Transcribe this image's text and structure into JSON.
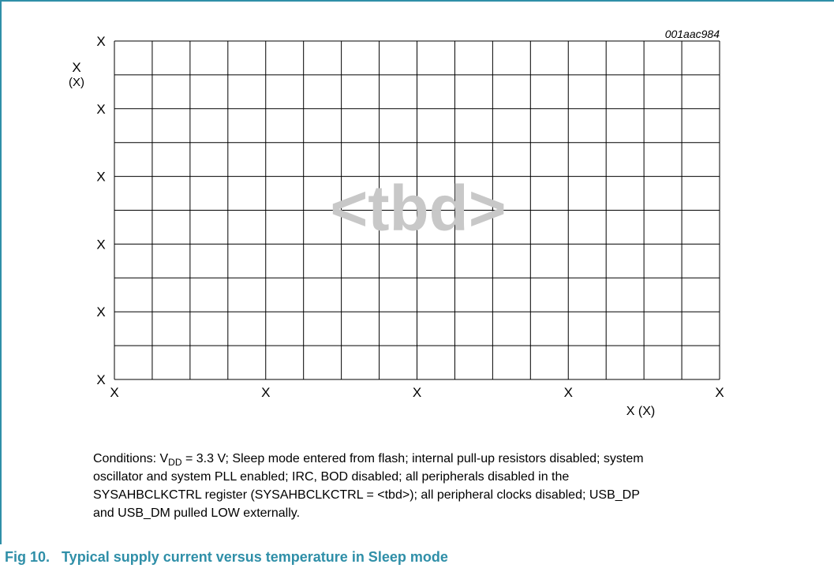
{
  "figure": {
    "code": "001aac984",
    "placeholder": "<tbd>",
    "y_axis_label": [
      "X",
      "(X)"
    ],
    "x_axis_label": "X (X)",
    "y_tick_labels": [
      "X",
      "X",
      "X",
      "X",
      "X",
      "X"
    ],
    "x_tick_labels": [
      "X",
      "X",
      "X",
      "X",
      "X"
    ],
    "conditions": {
      "prefix": "Conditions: V",
      "subscript": "DD",
      "first_line_rest": " = 3.3 V; Sleep mode entered from flash; internal pull-up resistors disabled; system",
      "lines": [
        "oscillator and system PLL enabled; IRC, BOD disabled; all peripherals disabled in the",
        "SYSAHBCLKCTRL register (SYSAHBCLKCTRL = <tbd>); all peripheral clocks disabled; USB_DP",
        "and USB_DM pulled LOW externally."
      ]
    },
    "caption": "Fig 10.   Typical supply current versus temperature in Sleep mode"
  }
}
